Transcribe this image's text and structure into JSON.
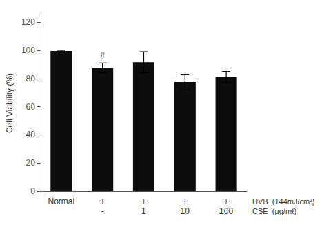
{
  "chart_data": {
    "type": "bar",
    "categories": [
      "Normal",
      "+\n-",
      "+\n1",
      "+\n10",
      "+\n100"
    ],
    "values": [
      99.5,
      87.5,
      91.5,
      77.5,
      81.0
    ],
    "errors": [
      0.5,
      3.5,
      7.5,
      5.5,
      4.0
    ],
    "color": "#0d0d0d",
    "ylabel": "Cell Viability (%)",
    "ylim": [
      0,
      125
    ],
    "yticks": [
      0,
      20,
      40,
      60,
      80,
      100,
      120
    ],
    "grid": false,
    "annotations": [
      {
        "text": "#",
        "x": "+\n-"
      },
      {
        "text": "UVB  (144mJ/cm²)"
      },
      {
        "text": "CSE  (μg/mℓ)"
      }
    ]
  }
}
